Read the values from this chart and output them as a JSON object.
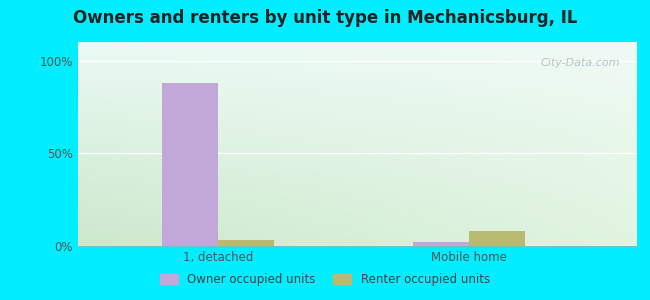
{
  "title": "Owners and renters by unit type in Mechanicsburg, IL",
  "categories": [
    "1, detached",
    "Mobile home"
  ],
  "owner_values": [
    88,
    2
  ],
  "renter_values": [
    3,
    8
  ],
  "owner_color": "#c2a8d8",
  "renter_color": "#b8ba72",
  "outer_background": "#00eeff",
  "yticks": [
    0,
    50,
    100
  ],
  "ytick_labels": [
    "0%",
    "50%",
    "100%"
  ],
  "bar_width": 0.3,
  "watermark": "City-Data.com",
  "legend_owner": "Owner occupied units",
  "legend_renter": "Renter occupied units",
  "bg_left_bottom": "#cce8cc",
  "bg_right_bottom": "#daeada",
  "bg_left_top": "#e8f4e8",
  "bg_right_top": "#f0f8f4"
}
